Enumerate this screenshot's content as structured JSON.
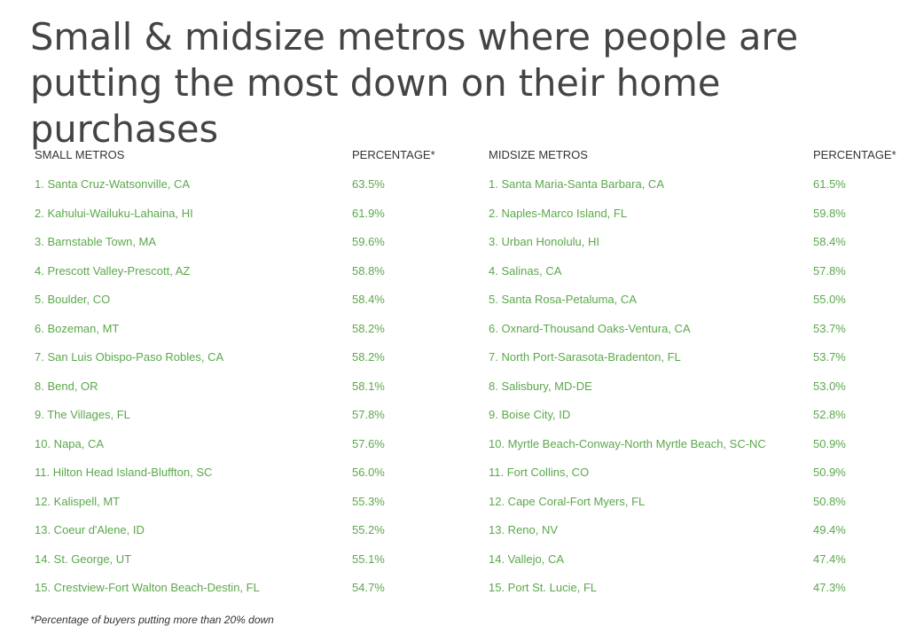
{
  "title": "Small & midsize metros where people are putting the most down on their home purchases",
  "footnote": "*Percentage of buyers putting more than 20% down",
  "chart_data": {
    "type": "table",
    "title": "Small & midsize metros where people are putting the most down on their home purchases",
    "tables": [
      {
        "header": [
          "SMALL METROS",
          "PERCENTAGE*"
        ],
        "rows": [
          [
            "1. Santa Cruz-Watsonville, CA",
            "63.5%"
          ],
          [
            "2. Kahului-Wailuku-Lahaina, HI",
            "61.9%"
          ],
          [
            "3. Barnstable Town, MA",
            "59.6%"
          ],
          [
            "4. Prescott Valley-Prescott, AZ",
            "58.8%"
          ],
          [
            "5. Boulder, CO",
            "58.4%"
          ],
          [
            "6. Bozeman, MT",
            "58.2%"
          ],
          [
            "7. San Luis Obispo-Paso Robles, CA",
            "58.2%"
          ],
          [
            "8. Bend, OR",
            "58.1%"
          ],
          [
            "9. The Villages, FL",
            "57.8%"
          ],
          [
            "10. Napa, CA",
            "57.6%"
          ],
          [
            "11. Hilton Head Island-Bluffton, SC",
            "56.0%"
          ],
          [
            "12. Kalispell, MT",
            "55.3%"
          ],
          [
            "13. Coeur d'Alene, ID",
            "55.2%"
          ],
          [
            "14. St. George, UT",
            "55.1%"
          ],
          [
            "15. Crestview-Fort Walton Beach-Destin, FL",
            "54.7%"
          ]
        ]
      },
      {
        "header": [
          "MIDSIZE METROS",
          "PERCENTAGE*"
        ],
        "rows": [
          [
            "1. Santa Maria-Santa Barbara, CA",
            "61.5%"
          ],
          [
            "2. Naples-Marco Island, FL",
            "59.8%"
          ],
          [
            "3. Urban Honolulu, HI",
            "58.4%"
          ],
          [
            "4. Salinas, CA",
            "57.8%"
          ],
          [
            "5. Santa Rosa-Petaluma, CA",
            "55.0%"
          ],
          [
            "6. Oxnard-Thousand Oaks-Ventura, CA",
            "53.7%"
          ],
          [
            "7. North Port-Sarasota-Bradenton, FL",
            "53.7%"
          ],
          [
            "8. Salisbury, MD-DE",
            "53.0%"
          ],
          [
            "9. Boise City, ID",
            "52.8%"
          ],
          [
            "10. Myrtle Beach-Conway-North Myrtle Beach, SC-NC",
            "50.9%"
          ],
          [
            "11. Fort Collins, CO",
            "50.9%"
          ],
          [
            "12. Cape Coral-Fort Myers, FL",
            "50.8%"
          ],
          [
            "13. Reno, NV",
            "49.4%"
          ],
          [
            "14. Vallejo, CA",
            "47.4%"
          ],
          [
            "15. Port St. Lucie, FL",
            "47.3%"
          ]
        ]
      }
    ]
  },
  "colors": {
    "title": "#444444",
    "header": "#333333",
    "row_text": "#5ba84b"
  }
}
